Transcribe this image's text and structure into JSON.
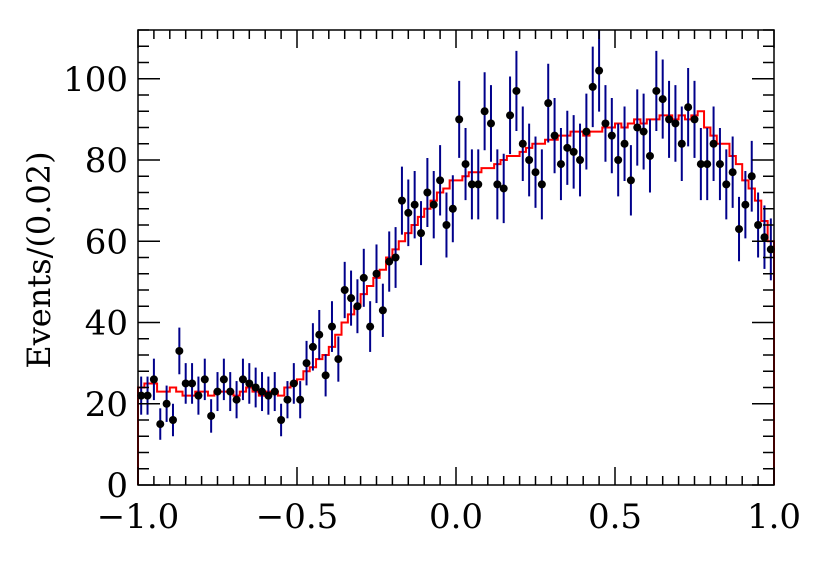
{
  "chart_data": {
    "type": "scatter",
    "title": "",
    "xlabel": "",
    "ylabel": "Events/(0.02)",
    "xlim": [
      -1.0,
      1.0
    ],
    "ylim": [
      0,
      112
    ],
    "x_ticks": [
      -1.0,
      -0.5,
      0.0,
      0.5,
      1.0
    ],
    "x_tick_labels": [
      "−1.0",
      "−0.5",
      "0.0",
      "0.5",
      "1.0"
    ],
    "y_ticks": [
      0,
      20,
      40,
      60,
      80,
      100
    ],
    "y_tick_labels": [
      "0",
      "20",
      "40",
      "60",
      "80",
      "100"
    ],
    "grid": false,
    "legend": "none",
    "colors": {
      "points": "#000000",
      "errors": "#00008b",
      "model": "#ff0000"
    },
    "series": [
      {
        "kind": "points-with-errors",
        "x": [
          -0.99,
          -0.97,
          -0.95,
          -0.93,
          -0.91,
          -0.89,
          -0.87,
          -0.85,
          -0.83,
          -0.81,
          -0.79,
          -0.77,
          -0.75,
          -0.73,
          -0.71,
          -0.69,
          -0.67,
          -0.65,
          -0.63,
          -0.61,
          -0.59,
          -0.57,
          -0.55,
          -0.53,
          -0.51,
          -0.49,
          -0.47,
          -0.45,
          -0.43,
          -0.41,
          -0.39,
          -0.37,
          -0.35,
          -0.33,
          -0.31,
          -0.29,
          -0.27,
          -0.25,
          -0.23,
          -0.21,
          -0.19,
          -0.17,
          -0.15,
          -0.13,
          -0.11,
          -0.09,
          -0.07,
          -0.05,
          -0.03,
          -0.01,
          0.01,
          0.03,
          0.05,
          0.07,
          0.09,
          0.11,
          0.13,
          0.15,
          0.17,
          0.19,
          0.21,
          0.23,
          0.25,
          0.27,
          0.29,
          0.31,
          0.33,
          0.35,
          0.37,
          0.39,
          0.41,
          0.43,
          0.45,
          0.47,
          0.49,
          0.51,
          0.53,
          0.55,
          0.57,
          0.59,
          0.61,
          0.63,
          0.65,
          0.67,
          0.69,
          0.71,
          0.73,
          0.75,
          0.77,
          0.79,
          0.81,
          0.83,
          0.85,
          0.87,
          0.89,
          0.91,
          0.93,
          0.95,
          0.97,
          0.99
        ],
        "y": [
          22,
          22,
          26,
          15,
          20,
          16,
          33,
          25,
          25,
          22,
          26,
          17,
          23,
          26,
          23,
          21,
          26,
          25,
          24,
          23,
          22,
          23,
          16,
          21,
          25,
          21,
          30,
          34,
          37,
          27,
          39,
          31,
          48,
          46,
          44,
          51,
          39,
          52,
          43,
          55,
          56,
          70,
          67,
          69,
          62,
          72,
          69,
          75,
          64,
          68,
          90,
          79,
          74,
          74,
          92,
          89,
          74,
          73,
          91,
          97,
          84,
          80,
          77,
          74,
          94,
          86,
          79,
          83,
          82,
          80,
          87,
          98,
          102,
          89,
          86,
          80,
          84,
          75,
          88,
          87,
          81,
          97,
          95,
          90,
          89,
          84,
          93,
          90,
          79,
          79,
          84,
          79,
          74,
          77,
          63,
          69,
          76,
          64,
          61,
          58
        ]
      },
      {
        "kind": "histogram-step",
        "bin_edges": [
          -1.0,
          -0.98,
          -0.96,
          -0.94,
          -0.92,
          -0.9,
          -0.88,
          -0.86,
          -0.84,
          -0.82,
          -0.8,
          -0.78,
          -0.76,
          -0.74,
          -0.72,
          -0.7,
          -0.68,
          -0.66,
          -0.64,
          -0.62,
          -0.6,
          -0.58,
          -0.56,
          -0.54,
          -0.52,
          -0.5,
          -0.48,
          -0.46,
          -0.44,
          -0.42,
          -0.4,
          -0.38,
          -0.36,
          -0.34,
          -0.32,
          -0.3,
          -0.28,
          -0.26,
          -0.24,
          -0.22,
          -0.2,
          -0.18,
          -0.16,
          -0.14,
          -0.12,
          -0.1,
          -0.08,
          -0.06,
          -0.04,
          -0.02,
          0.0,
          0.02,
          0.04,
          0.06,
          0.08,
          0.1,
          0.12,
          0.14,
          0.16,
          0.18,
          0.2,
          0.22,
          0.24,
          0.26,
          0.28,
          0.3,
          0.32,
          0.34,
          0.36,
          0.38,
          0.4,
          0.42,
          0.44,
          0.46,
          0.48,
          0.5,
          0.52,
          0.54,
          0.56,
          0.58,
          0.6,
          0.62,
          0.64,
          0.66,
          0.68,
          0.7,
          0.72,
          0.74,
          0.76,
          0.78,
          0.8,
          0.82,
          0.84,
          0.86,
          0.88,
          0.9,
          0.92,
          0.94,
          0.96,
          0.98,
          1.0
        ],
        "values": [
          24,
          25,
          25,
          23,
          23,
          24,
          23,
          22,
          22,
          23,
          23,
          22,
          23,
          23,
          23,
          22,
          23,
          24,
          23,
          22,
          23,
          23,
          22,
          24,
          25,
          26,
          28,
          29,
          31,
          32,
          34,
          37,
          40,
          42,
          44,
          47,
          49,
          51,
          53,
          56,
          58,
          60,
          62,
          64,
          66,
          68,
          70,
          72,
          73,
          75,
          75,
          76,
          77,
          77,
          78,
          78,
          79,
          80,
          81,
          81,
          82,
          83,
          84,
          84,
          85,
          85,
          86,
          86,
          87,
          87,
          86,
          87,
          87,
          88,
          88,
          89,
          88,
          89,
          90,
          89,
          90,
          90,
          91,
          91,
          90,
          91,
          90,
          91,
          92,
          88,
          86,
          84,
          84,
          81,
          79,
          75,
          73,
          70,
          65,
          60
        ]
      }
    ]
  }
}
